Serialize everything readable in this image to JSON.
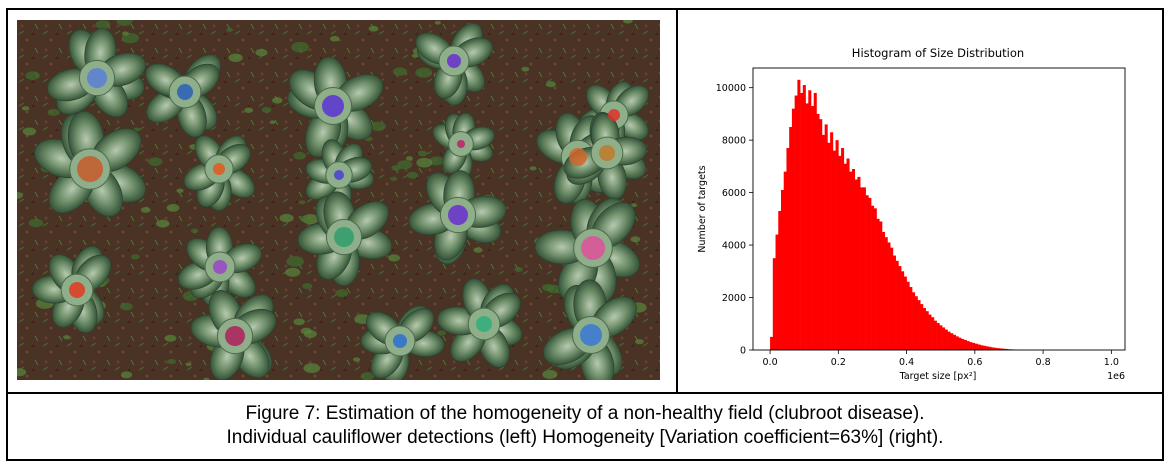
{
  "photo": {
    "description_icon": "aerial-cauliflower-field-image",
    "soil_color": "#4a3224",
    "plants": [
      {
        "cx": 80,
        "cy": 58,
        "r": 10,
        "color": "#5b7fd6"
      },
      {
        "cx": 168,
        "cy": 72,
        "r": 8,
        "color": "#2a5fb8"
      },
      {
        "cx": 437,
        "cy": 41,
        "r": 7,
        "color": "#6a2fcf"
      },
      {
        "cx": 316,
        "cy": 86,
        "r": 11,
        "color": "#5a33d4"
      },
      {
        "cx": 597,
        "cy": 95,
        "r": 6,
        "color": "#e0332a"
      },
      {
        "cx": 444,
        "cy": 124,
        "r": 4,
        "color": "#c0206a"
      },
      {
        "cx": 73,
        "cy": 149,
        "r": 13,
        "color": "#c85a2a"
      },
      {
        "cx": 202,
        "cy": 149,
        "r": 6,
        "color": "#e05a1e"
      },
      {
        "cx": 322,
        "cy": 155,
        "r": 5,
        "color": "#4a3fd0"
      },
      {
        "cx": 561,
        "cy": 137,
        "r": 9,
        "color": "#d0662a"
      },
      {
        "cx": 590,
        "cy": 133,
        "r": 8,
        "color": "#c07a2a"
      },
      {
        "cx": 441,
        "cy": 195,
        "r": 10,
        "color": "#6a2fcf"
      },
      {
        "cx": 327,
        "cy": 217,
        "r": 10,
        "color": "#2f9e6a"
      },
      {
        "cx": 576,
        "cy": 228,
        "r": 12,
        "color": "#e0509a"
      },
      {
        "cx": 203,
        "cy": 247,
        "r": 7,
        "color": "#9a44c8"
      },
      {
        "cx": 60,
        "cy": 270,
        "r": 8,
        "color": "#e03a1e"
      },
      {
        "cx": 218,
        "cy": 316,
        "r": 10,
        "color": "#b0205a"
      },
      {
        "cx": 383,
        "cy": 321,
        "r": 7,
        "color": "#2a70d0"
      },
      {
        "cx": 467,
        "cy": 304,
        "r": 8,
        "color": "#2fae7a"
      },
      {
        "cx": 574,
        "cy": 315,
        "r": 11,
        "color": "#3a78d6"
      }
    ]
  },
  "chart_data": {
    "type": "bar",
    "title": "Histogram of Size Distribution",
    "xlabel": "Target size [px²]",
    "ylabel": "Number of targets",
    "x_offset_label": "1e6",
    "xlim": [
      -0.05,
      1.04
    ],
    "ylim": [
      0,
      10750
    ],
    "xticks": [
      0.0,
      0.2,
      0.4,
      0.6,
      0.8,
      1.0
    ],
    "xtick_labels": [
      "0.0",
      "0.2",
      "0.4",
      "0.6",
      "0.8",
      "1.0"
    ],
    "yticks": [
      0,
      2000,
      4000,
      6000,
      8000,
      10000
    ],
    "ytick_labels": [
      "0",
      "2000",
      "4000",
      "6000",
      "8000",
      "10000"
    ],
    "bar_color": "#ff0000",
    "bin_start": 0.0,
    "bin_width": 0.008,
    "values": [
      500,
      3500,
      4400,
      5300,
      6100,
      6800,
      7700,
      8500,
      9200,
      9700,
      10300,
      9800,
      10100,
      9400,
      9900,
      9300,
      9800,
      9000,
      8800,
      8200,
      8600,
      7900,
      8300,
      7600,
      8000,
      7400,
      7700,
      7100,
      7300,
      6800,
      6900,
      6500,
      6600,
      6200,
      6200,
      5900,
      5800,
      5500,
      5400,
      5000,
      4900,
      4500,
      4300,
      4100,
      3900,
      3600,
      3400,
      3200,
      3000,
      2800,
      2600,
      2400,
      2200,
      2050,
      1900,
      1750,
      1600,
      1480,
      1350,
      1250,
      1120,
      1030,
      940,
      860,
      780,
      700,
      640,
      580,
      520,
      470,
      420,
      380,
      340,
      300,
      270,
      240,
      210,
      180,
      160,
      140,
      120,
      100,
      85,
      70,
      60,
      50,
      40,
      30,
      25,
      20,
      15,
      12,
      10,
      8,
      6,
      5,
      4,
      3,
      2,
      1,
      1,
      1,
      0
    ]
  },
  "caption": {
    "line1": "Figure 7: Estimation of the homogeneity of a non-healthy field (clubroot disease).",
    "line2": "Individual cauliflower detections (left) Homogeneity [Variation coefficient=63%] (right)."
  }
}
